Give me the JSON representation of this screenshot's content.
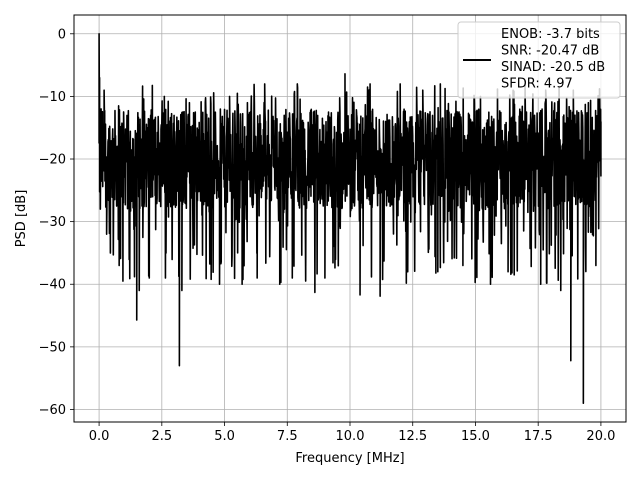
{
  "chart_data": {
    "type": "line",
    "title": "",
    "xlabel": "Frequency [MHz]",
    "ylabel": "PSD [dB]",
    "xlim": [
      -1.0,
      21.0
    ],
    "ylim": [
      -62.0,
      3.0
    ],
    "xticks": [
      0.0,
      2.5,
      5.0,
      7.5,
      10.0,
      12.5,
      15.0,
      17.5,
      20.0
    ],
    "xtick_labels": [
      "0.0",
      "2.5",
      "5.0",
      "7.5",
      "10.0",
      "12.5",
      "15.0",
      "17.5",
      "20.0"
    ],
    "yticks": [
      0,
      -10,
      -20,
      -30,
      -40,
      -50,
      -60
    ],
    "ytick_labels": [
      "0",
      "−10",
      "−20",
      "−30",
      "−40",
      "−50",
      "−60"
    ],
    "grid": true,
    "legend": {
      "placement": "top-right",
      "entries": [
        "ENOB: -3.7 bits",
        "SNR: -20.47 dB",
        "SINAD: -20.5 dB",
        "SFDR: 4.97"
      ]
    },
    "series": [
      {
        "color": "#000000",
        "noise_floor_db": -20,
        "x_range": [
          0.0,
          20.0
        ],
        "points": [
          [
            0.0,
            0.0
          ],
          [
            0.02,
            -7
          ],
          [
            0.05,
            -28
          ],
          [
            0.08,
            -12
          ],
          [
            0.12,
            -22
          ],
          [
            0.18,
            -15
          ],
          [
            0.3,
            -32
          ],
          [
            0.45,
            -35
          ],
          [
            0.8,
            -37
          ],
          [
            0.95,
            -39.5
          ],
          [
            1.5,
            -45.7
          ],
          [
            1.6,
            -41
          ],
          [
            2.0,
            -39
          ],
          [
            3.2,
            -53
          ],
          [
            3.3,
            -41
          ],
          [
            4.8,
            -40
          ],
          [
            5.7,
            -40
          ],
          [
            6.3,
            -39
          ],
          [
            7.2,
            -40
          ],
          [
            7.7,
            -39
          ],
          [
            8.6,
            -41.3
          ],
          [
            9.0,
            -39
          ],
          [
            10.4,
            -41.7
          ],
          [
            11.2,
            -41.9
          ],
          [
            11.3,
            -39
          ],
          [
            12.3,
            -38
          ],
          [
            13.5,
            -38
          ],
          [
            14.5,
            -37
          ],
          [
            15.6,
            -40
          ],
          [
            16.3,
            -38
          ],
          [
            17.6,
            -40
          ],
          [
            18.4,
            -41
          ],
          [
            18.8,
            -52.2
          ],
          [
            19.3,
            -59
          ],
          [
            19.8,
            -37
          ],
          [
            0.2,
            -9
          ],
          [
            2.6,
            -10
          ],
          [
            3.6,
            -11
          ],
          [
            5.2,
            -10
          ],
          [
            6.6,
            -8
          ],
          [
            7.9,
            -8
          ],
          [
            9.8,
            -6.4
          ],
          [
            10.8,
            -8
          ],
          [
            12.0,
            -8
          ],
          [
            12.9,
            -9
          ],
          [
            13.6,
            -8
          ],
          [
            15.2,
            -10
          ],
          [
            16.5,
            -9
          ],
          [
            17.8,
            -9
          ],
          [
            18.9,
            -9
          ],
          [
            19.5,
            -11
          ],
          [
            20.0,
            -14
          ]
        ]
      }
    ]
  }
}
